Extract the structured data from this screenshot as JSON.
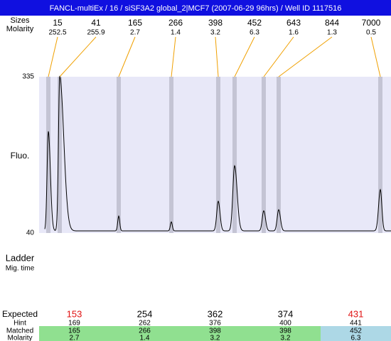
{
  "header": {
    "title": "FANCL-multiEx / 16 / siSF3A2 global_2|MCF7 (2007-06-29 96hrs) / Well ID 1117516"
  },
  "peaks": {
    "size_label": "Sizes",
    "molarity_label": "Molarity",
    "items": [
      {
        "size": 15,
        "molarity": 252.5,
        "fluo": 232
      },
      {
        "size": 41,
        "molarity": 255.9,
        "fluo": 335
      },
      {
        "size": 165,
        "molarity": 2.7,
        "fluo": 72
      },
      {
        "size": 266,
        "molarity": 1.4,
        "fluo": 61
      },
      {
        "size": 398,
        "molarity": 3.2,
        "fluo": 100
      },
      {
        "size": 452,
        "molarity": 6.3,
        "fluo": 167
      },
      {
        "size": 643,
        "molarity": 1.6,
        "fluo": 82
      },
      {
        "size": 844,
        "molarity": 1.3,
        "fluo": 84
      },
      {
        "size": 7000,
        "molarity": 0.5,
        "fluo": 122
      }
    ]
  },
  "plot": {
    "y_label": "Fluo.",
    "ylim": [
      40,
      335
    ],
    "yticks": [
      40,
      335
    ],
    "baseline": 44
  },
  "ladder": {
    "label": "Ladder",
    "sub_label": "Mig. time"
  },
  "table": {
    "expected_label": "Expected",
    "hint_label": "Hint",
    "matched_label": "Matched",
    "molarity_label": "Molarity",
    "columns": [
      {
        "expected": 153,
        "hint": 169,
        "matched": 165,
        "molarity": 2.7,
        "expected_color": "#e01010",
        "row_color": "#90e090"
      },
      {
        "expected": 254,
        "hint": 262,
        "matched": 266,
        "molarity": 1.4,
        "expected_color": "#000000",
        "row_color": "#90e090"
      },
      {
        "expected": 362,
        "hint": 376,
        "matched": 398,
        "molarity": 3.2,
        "expected_color": "#000000",
        "row_color": "#90e090"
      },
      {
        "expected": 374,
        "hint": 400,
        "matched": 398,
        "molarity": 3.2,
        "expected_color": "#000000",
        "row_color": "#90e090"
      },
      {
        "expected": 431,
        "hint": 441,
        "matched": 452,
        "molarity": 6.3,
        "expected_color": "#e01010",
        "row_color": "#add8e6"
      }
    ]
  }
}
